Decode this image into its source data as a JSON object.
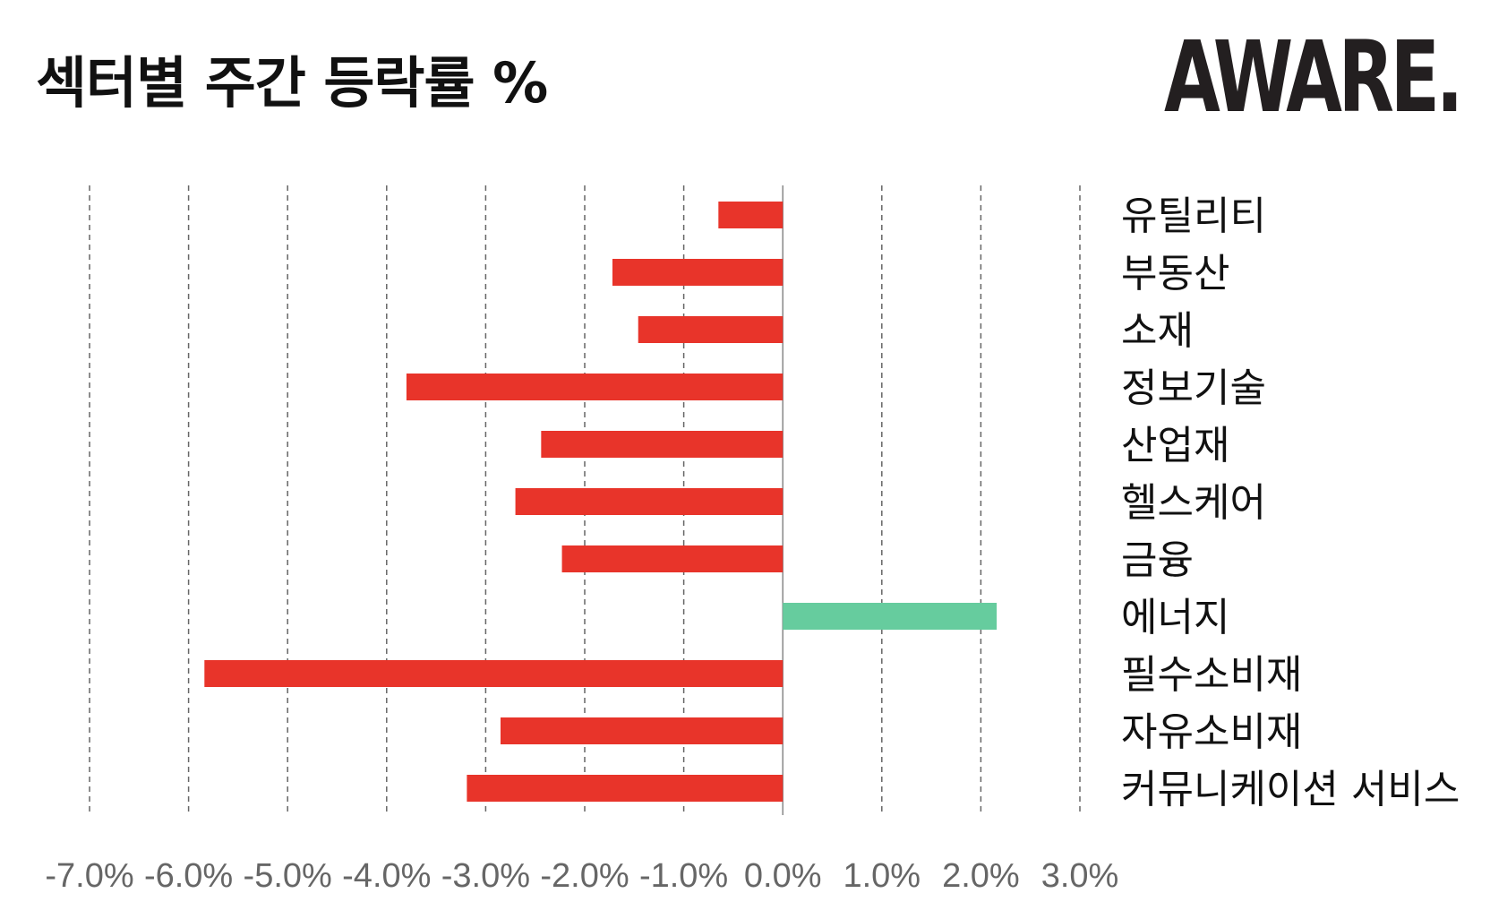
{
  "chart_data": {
    "type": "bar",
    "orientation": "horizontal",
    "title": "섹터별 주간 등락률 %",
    "categories": [
      "유틸리티",
      "부동산",
      "소재",
      "정보기술",
      "산업재",
      "헬스케어",
      "금융",
      "에너지",
      "필수소비재",
      "자유소비재",
      "커뮤니케이션 서비스"
    ],
    "values": [
      -0.65,
      -1.72,
      -1.46,
      -3.8,
      -2.44,
      -2.7,
      -2.23,
      2.16,
      -5.84,
      -2.85,
      -3.19
    ],
    "xlim": [
      -7.0,
      3.0
    ],
    "xticks": [
      "-7.0%",
      "-6.0%",
      "-5.0%",
      "-4.0%",
      "-3.0%",
      "-2.0%",
      "-1.0%",
      "0.0%",
      "1.0%",
      "2.0%",
      "3.0%"
    ],
    "grid": true,
    "colors": {
      "negative": "#e8342a",
      "positive": "#66cc9e"
    }
  },
  "brand": {
    "name": "AWARE.",
    "dark": "#231f20",
    "accent": "#66cc9e"
  }
}
